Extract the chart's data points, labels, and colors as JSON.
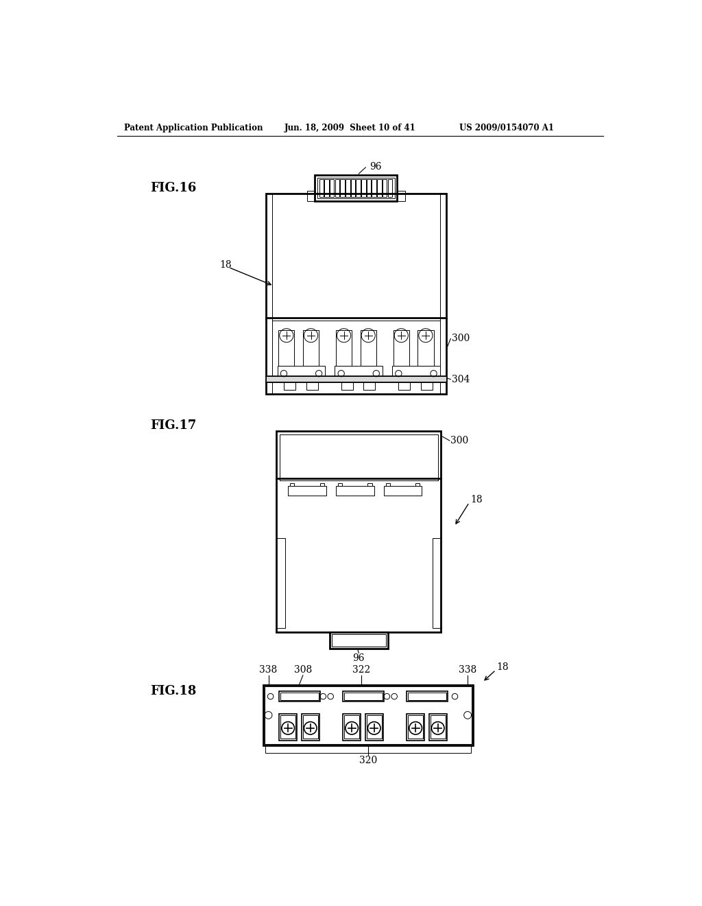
{
  "bg_color": "#ffffff",
  "header_left": "Patent Application Publication",
  "header_mid": "Jun. 18, 2009  Sheet 10 of 41",
  "header_right": "US 2009/0154070 A1",
  "fig16_label": "FIG.16",
  "fig17_label": "FIG.17",
  "fig18_label": "FIG.18",
  "line_color": "#000000",
  "lw_thick": 2.0,
  "lw_med": 1.2,
  "lw_thin": 0.7
}
